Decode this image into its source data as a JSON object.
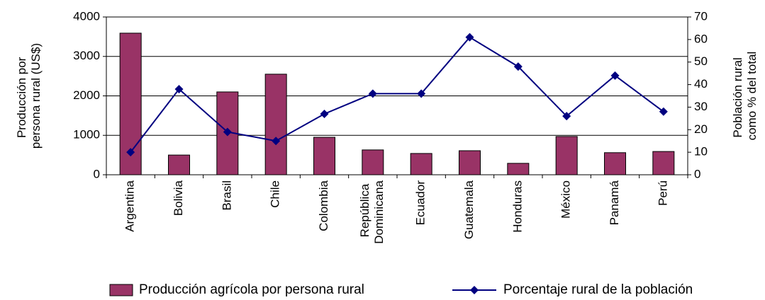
{
  "chart_data": {
    "type": "bar_line",
    "categories": [
      "Argentina",
      "Bolivia",
      "Brasil",
      "Chile",
      "Colombia",
      "República Dominicana",
      "Ecuador",
      "Guatemala",
      "Honduras",
      "México",
      "Panamá",
      "Perú"
    ],
    "ylabel": "Producción por persona rural (US$)",
    "y2label": "Población rural como % del total",
    "series": [
      {
        "name": "Producción agrícola por persona rural",
        "color": "#993366",
        "values": [
          3590,
          500,
          2100,
          2550,
          950,
          630,
          540,
          610,
          290,
          970,
          560,
          590
        ]
      },
      {
        "name": "Porcentaje rural de la población",
        "color": "#000080",
        "axis": "y2",
        "values": [
          10,
          38,
          19,
          15,
          27,
          36,
          36,
          61,
          48,
          26,
          44,
          28
        ]
      }
    ],
    "ylim": [
      0,
      4000
    ],
    "yticks": [
      0,
      1000,
      2000,
      3000,
      4000
    ],
    "y2lim": [
      0,
      70
    ],
    "y2ticks": [
      0,
      10,
      20,
      30,
      40,
      50,
      60,
      70
    ],
    "grid": true
  }
}
